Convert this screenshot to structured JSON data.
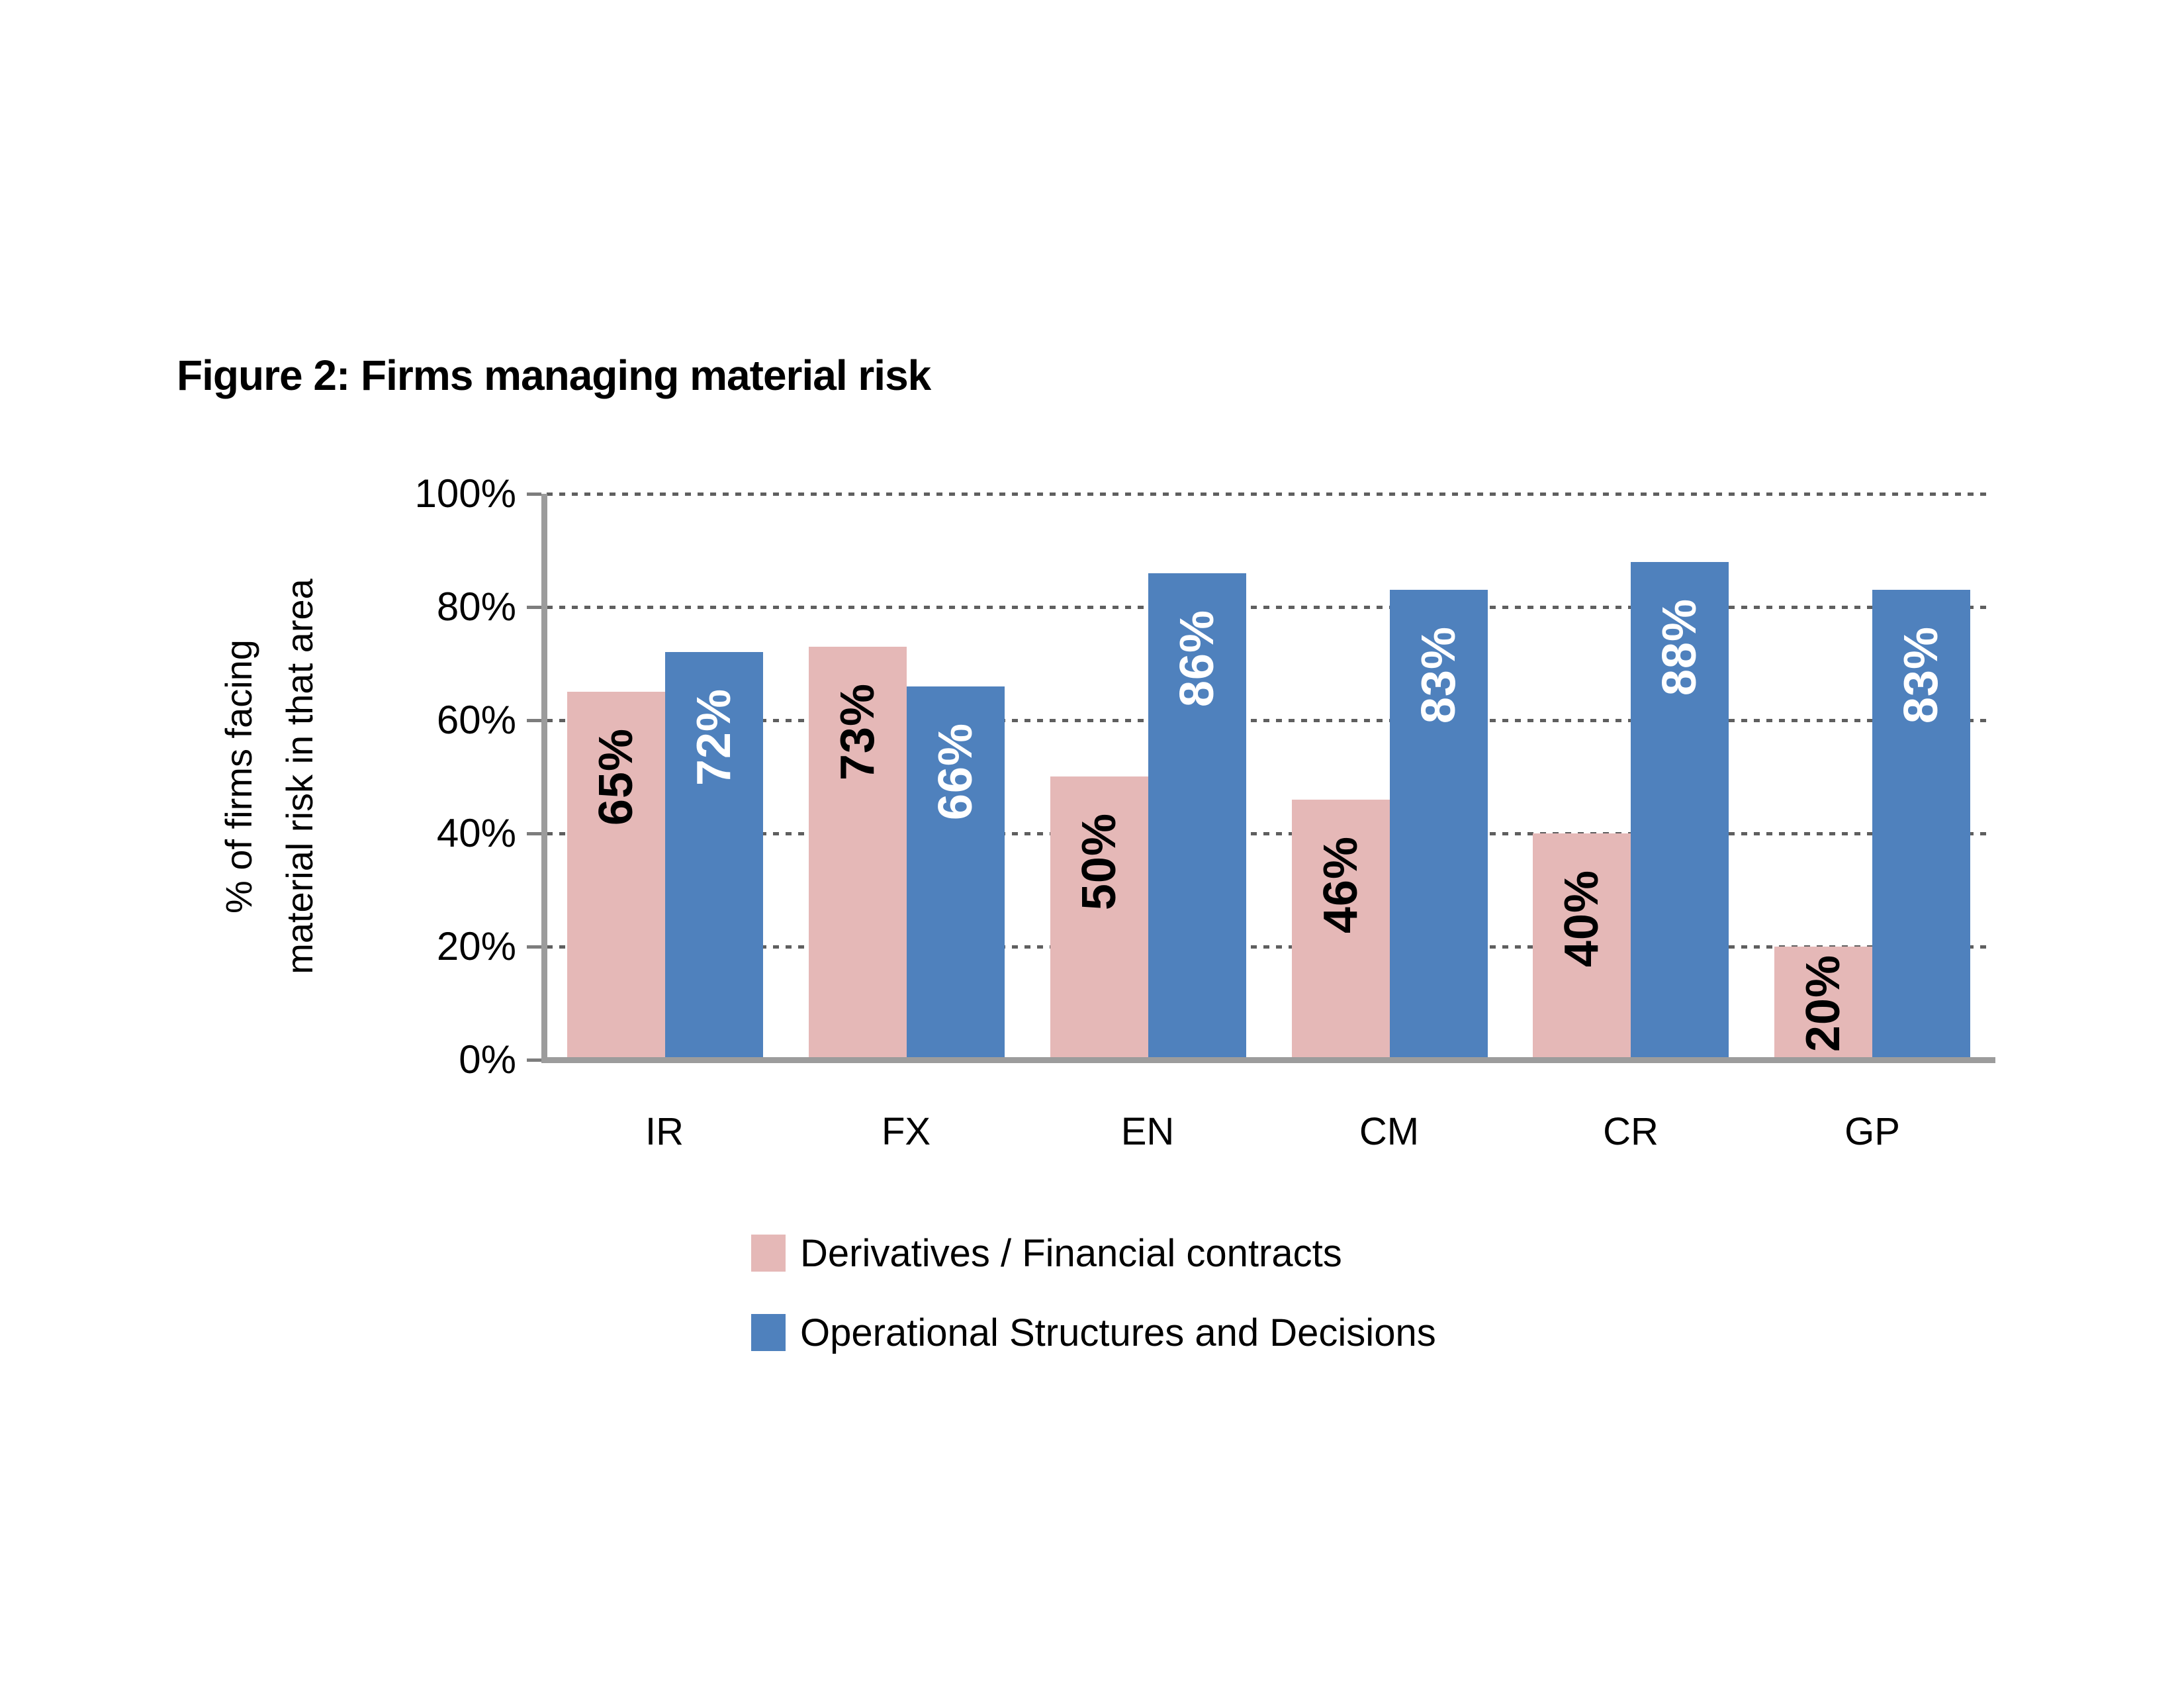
{
  "figure": {
    "title": "Figure 2: Firms managing material risk"
  },
  "chart_data": {
    "type": "bar",
    "title": "Figure 2: Firms managing material risk",
    "categories": [
      "IR",
      "FX",
      "EN",
      "CM",
      "CR",
      "GP"
    ],
    "series": [
      {
        "name": "Derivatives / Financial contracts",
        "color": "#e5b8b7",
        "label_color": "#000000",
        "values": [
          65,
          73,
          50,
          46,
          40,
          20
        ]
      },
      {
        "name": "Operational Structures and Decisions",
        "color": "#4f81bd",
        "label_color": "#ffffff",
        "values": [
          72,
          66,
          86,
          83,
          88,
          83
        ]
      }
    ],
    "value_suffix": "%",
    "ylabel_lines": [
      "% of firms facing",
      "material risk in that area"
    ],
    "y_ticks": [
      "100%",
      "80%",
      "60%",
      "40%",
      "20%",
      "0%"
    ],
    "ylim": [
      0,
      100
    ],
    "grid": "horizontal-dotted",
    "legend_position": "bottom-left",
    "colors": {
      "axis": "#9c9c9c",
      "gridline": "#5f5f5f",
      "text": "#000000"
    }
  }
}
